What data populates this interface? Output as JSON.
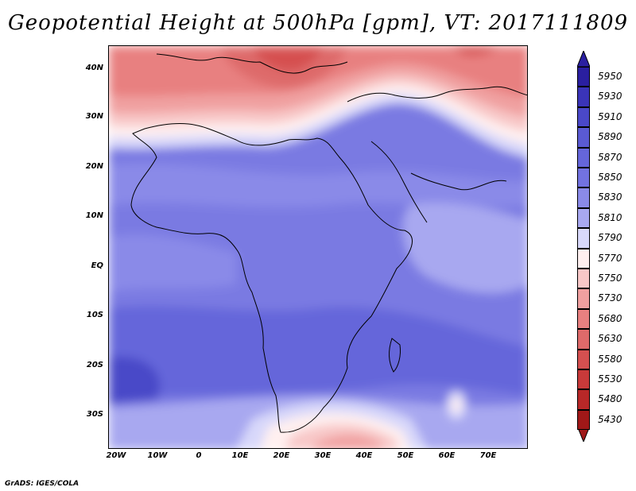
{
  "title": "Geopotential Height at 500hPa [gpm], VT: 2017111809",
  "credit": "GrADS: IGES/COLA",
  "lat_labels": [
    "40N",
    "30N",
    "20N",
    "10N",
    "EQ",
    "10S",
    "20S",
    "30S"
  ],
  "lon_labels": [
    "20W",
    "10W",
    "0",
    "10E",
    "20E",
    "30E",
    "40E",
    "50E",
    "60E",
    "70E"
  ],
  "colorbar": {
    "levels": [
      "5950",
      "5930",
      "5910",
      "5890",
      "5870",
      "5850",
      "5830",
      "5810",
      "5790",
      "5770",
      "5750",
      "5730",
      "5680",
      "5630",
      "5580",
      "5530",
      "5480",
      "5430"
    ],
    "colors": [
      "#2a1fa0",
      "#3a34b8",
      "#4a48c8",
      "#5a5ad2",
      "#6566da",
      "#7272e0",
      "#8a8ae8",
      "#a8a8f0",
      "#d8d8fa",
      "#fff0f0",
      "#f8c8c8",
      "#f0a0a0",
      "#e88080",
      "#de6a6a",
      "#d55050",
      "#c83a3a",
      "#b82828",
      "#a01818"
    ],
    "top_arrow_color": "#2a1fa0",
    "bottom_arrow_color": "#a01818"
  }
}
